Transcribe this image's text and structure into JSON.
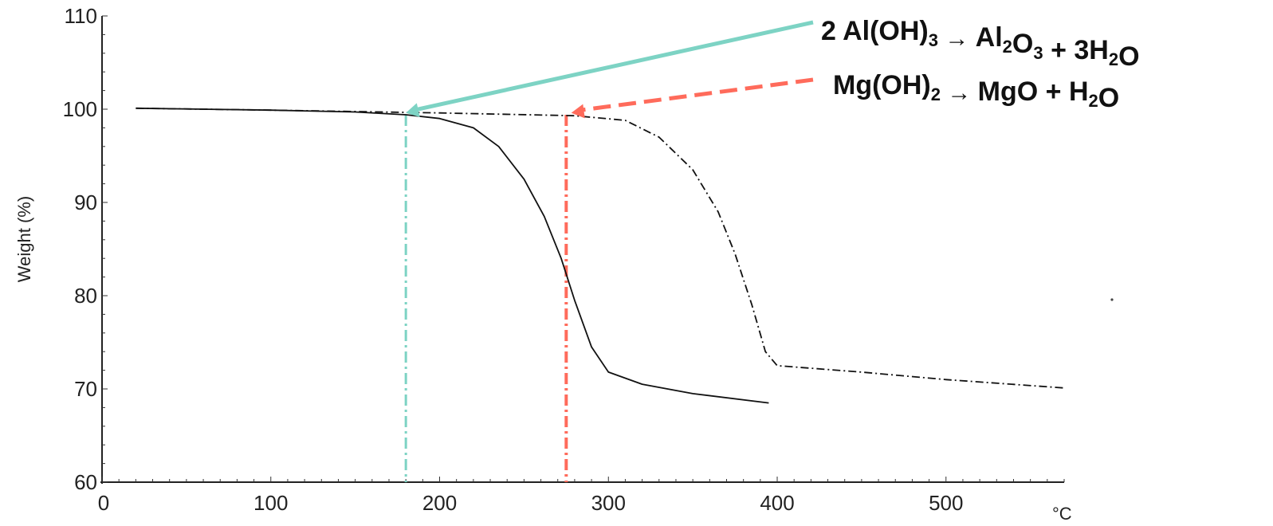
{
  "chart_data": {
    "type": "line",
    "title": "",
    "xlabel": "°C",
    "ylabel": "Weight (%)",
    "xlim": [
      0,
      570
    ],
    "ylim": [
      60,
      110
    ],
    "xticks": [
      0,
      100,
      200,
      300,
      400,
      500
    ],
    "yticks": [
      60,
      70,
      80,
      90,
      100,
      110
    ],
    "xtick_labels": [
      "0",
      "100",
      "200",
      "300",
      "400",
      "500"
    ],
    "ytick_labels": [
      "60",
      "70",
      "80",
      "90",
      "100",
      "110"
    ],
    "grid": false,
    "series": [
      {
        "style": "solid",
        "color": "#111111",
        "x": [
          20,
          100,
          150,
          180,
          200,
          220,
          235,
          250,
          262,
          272,
          280,
          290,
          300,
          320,
          350,
          395
        ],
        "y": [
          100.1,
          99.9,
          99.7,
          99.4,
          99.0,
          98.0,
          96.0,
          92.5,
          88.5,
          84.0,
          79.5,
          74.5,
          71.8,
          70.5,
          69.5,
          68.5
        ]
      },
      {
        "style": "dash-dot",
        "color": "#111111",
        "x": [
          20,
          100,
          200,
          280,
          310,
          330,
          350,
          365,
          375,
          385,
          393,
          400,
          450,
          500,
          570
        ],
        "y": [
          100.1,
          99.9,
          99.6,
          99.3,
          98.8,
          97.0,
          93.5,
          89.0,
          84.5,
          79.0,
          74.0,
          72.5,
          71.8,
          71.0,
          70.1
        ]
      }
    ],
    "markers": [
      {
        "x": 180,
        "color": "#7dd3c4"
      },
      {
        "x": 275,
        "color": "#ff6b5b"
      }
    ],
    "annotations": [
      {
        "name": "aloh3",
        "parts": [
          {
            "t": "2 Al(OH)"
          },
          {
            "t": "3",
            "sub": true
          },
          {
            "t": " → ",
            "arrow": true
          },
          {
            "t": "Al"
          },
          {
            "t": "2",
            "sub": true
          },
          {
            "t": "O"
          },
          {
            "t": "3",
            "sub": true
          },
          {
            "t": " + 3H"
          },
          {
            "t": "2",
            "sub": true
          },
          {
            "t": "O"
          }
        ],
        "color": "#7dd3c4",
        "style": "solid",
        "target": [
          180,
          99.6
        ]
      },
      {
        "name": "mgoh2",
        "parts": [
          {
            "t": "Mg(OH)"
          },
          {
            "t": "2",
            "sub": true
          },
          {
            "t": " → ",
            "arrow": true
          },
          {
            "t": " MgO +   H"
          },
          {
            "t": "2",
            "sub": true
          },
          {
            "t": "O"
          }
        ],
        "color": "#ff6b5b",
        "style": "dashed",
        "target": [
          278,
          99.6
        ]
      }
    ]
  }
}
